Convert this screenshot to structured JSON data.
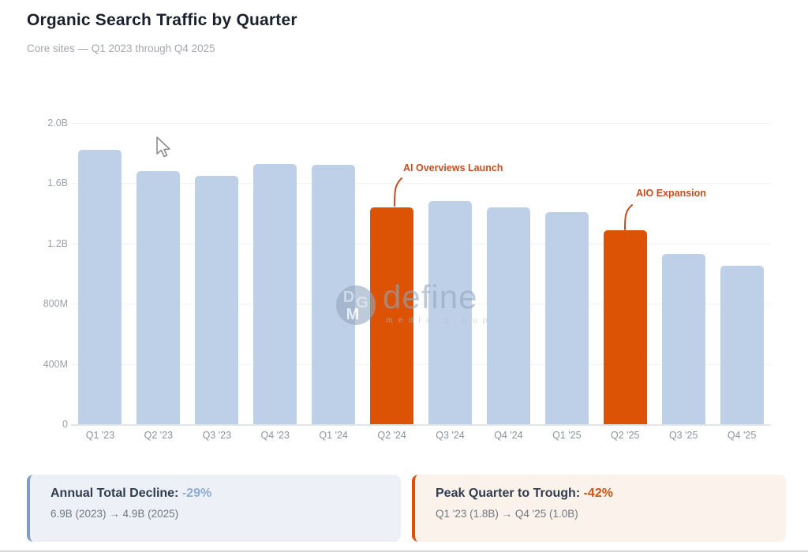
{
  "header": {
    "title": "Organic Search Traffic by Quarter",
    "subtitle": "Core sites — Q1 2023 through Q4 2025"
  },
  "chart_data": {
    "type": "bar",
    "title": "Organic Search Traffic by Quarter",
    "categories": [
      "Q1 '23",
      "Q2 '23",
      "Q3 '23",
      "Q4 '23",
      "Q1 '24",
      "Q2 '24",
      "Q3 '24",
      "Q4 '24",
      "Q1 '25",
      "Q2 '25",
      "Q3 '25",
      "Q4 '25"
    ],
    "values": [
      1.82,
      1.68,
      1.65,
      1.73,
      1.72,
      1.44,
      1.48,
      1.44,
      1.41,
      1.29,
      1.13,
      1.05
    ],
    "unit": "searches (B = billions, M = millions)",
    "ylim": [
      0,
      2.0
    ],
    "y_ticks": [
      "2.0B",
      "1.6B",
      "1.2B",
      "800M",
      "400M",
      "0"
    ],
    "y_tick_values": [
      2.0,
      1.6,
      1.2,
      0.8,
      0.4,
      0
    ],
    "grid": true,
    "legend_position": "none",
    "highlight_indices": [
      5,
      9
    ],
    "bar_color": "#bed0e8",
    "highlight_color": "#dc5306",
    "annotations": [
      {
        "label": "AI Overviews Launch",
        "target": "Q2 '24"
      },
      {
        "label": "AIO Expansion",
        "target": "Q2 '25"
      }
    ]
  },
  "watermark": {
    "monogram_letters": [
      "D",
      "G",
      "M"
    ],
    "name": "define",
    "tagline": "media group"
  },
  "cards": [
    {
      "title": "Annual Total Decline:",
      "value": "-29%",
      "detail": "6.9B (2023) → 4.9B (2025)"
    },
    {
      "title": "Peak Quarter to Trough:",
      "value": "-42%",
      "detail": "Q1 '23 (1.8B) → Q4 '25 (1.0B)"
    }
  ],
  "colors": {
    "accent_orange": "#dc5306",
    "accent_blue": "#7f9dc2",
    "annotation_text": "#c44d20"
  }
}
